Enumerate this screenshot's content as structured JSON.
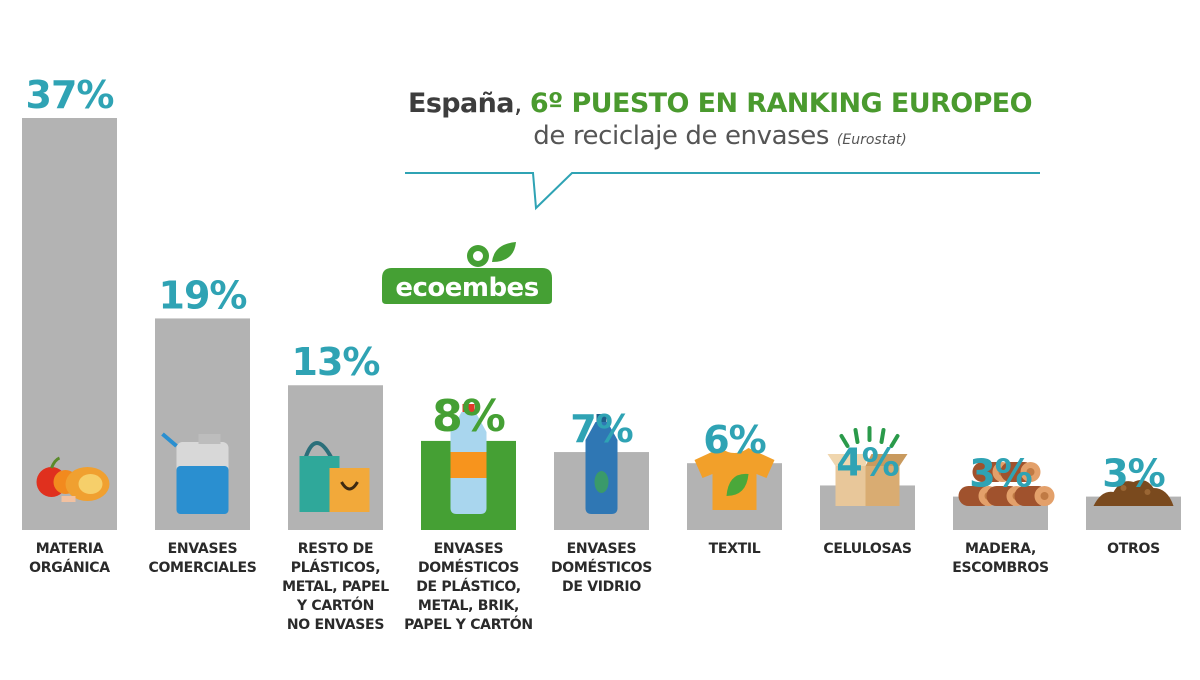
{
  "headline": {
    "country": "España",
    "ranking": "6º PUESTO EN RANKING EUROPEO",
    "subtitle": "de reciclaje de envases",
    "source": "(Eurostat)"
  },
  "logo": {
    "text": "ecoembes"
  },
  "colors": {
    "bar": "#b3b3b3",
    "highlight": "#45a034",
    "value": "#2fa3b4",
    "label": "#2a2a2a",
    "headline_green": "#4a9a2e",
    "bubble_line": "#2fa3b4"
  },
  "chart_data": {
    "type": "bar",
    "categories": [
      "MATERIA\nORGÁNICA",
      "ENVASES\nCOMERCIALES",
      "RESTO DE\nPLÁSTICOS,\nMETAL, PAPEL\nY CARTÓN\nNO ENVASES",
      "ENVASES\nDOMÉSTICOS\nDE PLÁSTICO,\nMETAL, BRIK,\nPAPEL Y CARTÓN",
      "ENVASES\nDOMÉSTICOS\nDE VIDRIO",
      "TEXTIL",
      "CELULOSAS",
      "MADERA,\nESCOMBROS",
      "OTROS"
    ],
    "values": [
      37,
      19,
      13,
      8,
      7,
      6,
      4,
      3,
      3
    ],
    "value_labels": [
      "37%",
      "19%",
      "13%",
      "8%",
      "7%",
      "6%",
      "4%",
      "3%",
      "3%"
    ],
    "highlight_index": 3,
    "icons": [
      "fruit-meat-icon",
      "detergent-jug-icon",
      "shopping-bags-icon",
      "plastic-bottle-icon",
      "glass-bottle-icon",
      "tshirt-icon",
      "cardboard-box-icon",
      "wood-logs-icon",
      "dirt-pile-icon"
    ],
    "ylim": [
      0,
      37
    ]
  }
}
